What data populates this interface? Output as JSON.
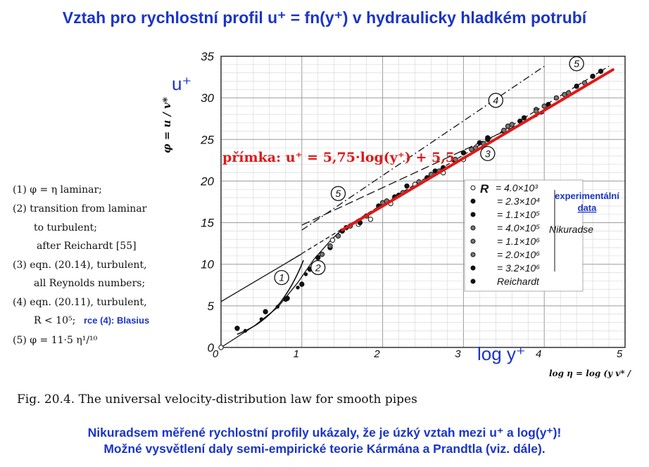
{
  "title": "Vztah pro rychlostní profil u⁺ = fn(y⁺) v hydraulicky hladkém potrubí",
  "footer": {
    "line1": "Nikuradsem měřené rychlostní profily ukázaly, že je úzký vztah mezi u⁺ a log(y⁺)!",
    "line2": "Možné vysvětlení daly semi-empirické teorie Kármána a Prandtla (viz. dále)."
  },
  "caption": "Fig. 20.4.   The universal velocity-distribution law for smooth pipes",
  "left_legend": [
    "(1) φ = η laminar;",
    "(2) transition from laminar",
    "to turbulent;",
    "after Reichardt [55]",
    "(3) eqn. (20.14), turbulent,",
    "all Reynolds numbers;",
    "(4) eqn. (20.11), turbulent,",
    "R < 10⁵;",
    "(5) φ = 11·5 η¹/¹⁰"
  ],
  "left_legend_note": "rce (4): Blasius",
  "annotations": {
    "u_plus": "u⁺",
    "log_y_plus": "log y⁺",
    "line_eq": "přímka:  u⁺ = 5,75·log(y⁺) + 5,5",
    "experimental": "experimentální data",
    "nikuradse": "Nikuradse",
    "reichardt": "Reichardt"
  },
  "chart_data": {
    "type": "scatter",
    "xlabel": "log η = log (y v* / ν)",
    "ylabel": "φ = u / v*",
    "xlim": [
      0,
      5
    ],
    "ylim": [
      0,
      35
    ],
    "xticks": [
      "0",
      "1",
      "2",
      "3",
      "4",
      "5"
    ],
    "yticks": [
      "0",
      "5",
      "10",
      "15",
      "20",
      "25",
      "30",
      "35"
    ],
    "grid": true,
    "legend_title": "R",
    "legend_position": "bottom-right",
    "series": [
      {
        "name": "= 4.0×10³",
        "marker": "open-circle",
        "x": [
          0.0,
          1.38,
          1.5,
          1.7,
          1.85,
          2.1,
          2.4,
          2.75,
          3.0
        ],
        "y": [
          0.0,
          12.9,
          14.0,
          14.8,
          15.4,
          17.3,
          19.6,
          21.0,
          22.6
        ]
      },
      {
        "name": "= 2.3×10⁴",
        "marker": "filled-circle",
        "x": [
          0.2,
          0.55,
          0.82,
          1.0,
          1.2,
          1.55,
          1.95,
          2.3,
          2.65,
          3.0,
          3.3
        ],
        "y": [
          2.3,
          4.3,
          5.9,
          7.6,
          10.8,
          14.4,
          17.0,
          19.4,
          21.2,
          23.4,
          25.2
        ]
      },
      {
        "name": "= 1.1×10⁵",
        "marker": "filled-circle",
        "x": [
          0.8,
          1.1,
          1.35,
          1.72,
          2.15,
          2.55,
          2.9,
          3.2,
          3.5,
          3.75
        ],
        "y": [
          5.8,
          9.4,
          12.0,
          15.0,
          18.1,
          20.4,
          22.4,
          24.6,
          26.0,
          27.6
        ]
      },
      {
        "name": "= 4.0×10⁵",
        "marker": "half-circle",
        "x": [
          1.25,
          1.6,
          2.0,
          2.45,
          2.9,
          3.25,
          3.55,
          3.9,
          4.15
        ],
        "y": [
          11.2,
          14.6,
          17.4,
          19.9,
          22.6,
          24.5,
          26.6,
          28.6,
          30.0
        ]
      },
      {
        "name": "= 1.1×10⁶",
        "marker": "half-circle",
        "x": [
          1.35,
          1.8,
          2.25,
          2.7,
          3.15,
          3.6,
          4.0,
          4.3
        ],
        "y": [
          12.2,
          15.8,
          18.6,
          21.2,
          24.0,
          26.8,
          29.0,
          30.6
        ]
      },
      {
        "name": "= 2.0×10⁶",
        "marker": "half-circle",
        "x": [
          1.45,
          2.05,
          2.6,
          3.1,
          3.5,
          3.9,
          4.25,
          4.5
        ],
        "y": [
          13.4,
          17.6,
          20.8,
          23.8,
          26.1,
          28.4,
          30.4,
          31.8
        ]
      },
      {
        "name": "= 3.2×10⁶",
        "marker": "filled-circle",
        "x": [
          1.5,
          2.2,
          2.75,
          3.3,
          3.7,
          4.05,
          4.4,
          4.6,
          4.7
        ],
        "y": [
          14.0,
          18.3,
          21.6,
          25.0,
          27.2,
          29.2,
          31.4,
          32.6,
          33.2
        ]
      },
      {
        "name": "Reichardt",
        "marker": "small-dot",
        "x": [
          0.3,
          0.5,
          0.7,
          0.95,
          1.05,
          1.15
        ],
        "y": [
          2.0,
          3.4,
          4.9,
          7.2,
          8.8,
          10.0
        ]
      }
    ],
    "curves": [
      {
        "label": "1",
        "style": "solid",
        "kind": "laminar φ = η"
      },
      {
        "label": "2",
        "style": "solid",
        "kind": "transition (Reichardt)"
      },
      {
        "label": "3",
        "style": "dashed",
        "x": [
          0.85,
          4.8
        ],
        "y": [
          10.4,
          33.8
        ]
      },
      {
        "label": "4",
        "style": "dash-dot",
        "x": [
          1.0,
          4.0
        ],
        "y": [
          14.1,
          33.8
        ]
      },
      {
        "label": "5",
        "style": "long-dash",
        "x": [
          1.0,
          4.0
        ],
        "y": [
          14.7,
          28.2
        ]
      },
      {
        "label": "turbulent fit",
        "style": "solid",
        "x": [
          0.0,
          1.0
        ],
        "y": [
          5.5,
          11.25
        ]
      }
    ],
    "fit_line": {
      "label": "přímka",
      "slope": 5.75,
      "intercept": 5.5,
      "x": [
        1.5,
        4.85
      ],
      "color": "#e01818"
    }
  }
}
